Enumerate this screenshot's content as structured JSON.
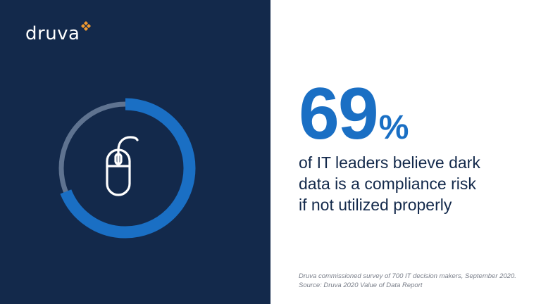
{
  "brand": {
    "name": "druva",
    "colors": {
      "navy": "#13294b",
      "accent_blue": "#1a6fc4",
      "ring_track": "#5f7390",
      "logo_orange": "#f29a2e"
    }
  },
  "statistic": {
    "value": "69",
    "unit": "%",
    "ring_fill_fraction": 0.69,
    "description_lines": [
      "of IT leaders believe dark",
      "data is a compliance risk",
      "if not utilized properly"
    ]
  },
  "icons": {
    "center": "computer-mouse-icon",
    "logo": "druva-logo-icon"
  },
  "footnote": {
    "line1": "Druva commissioned survey of 700 IT decision makers, September 2020.",
    "line2": "Source: Druva 2020 Value of Data Report"
  }
}
